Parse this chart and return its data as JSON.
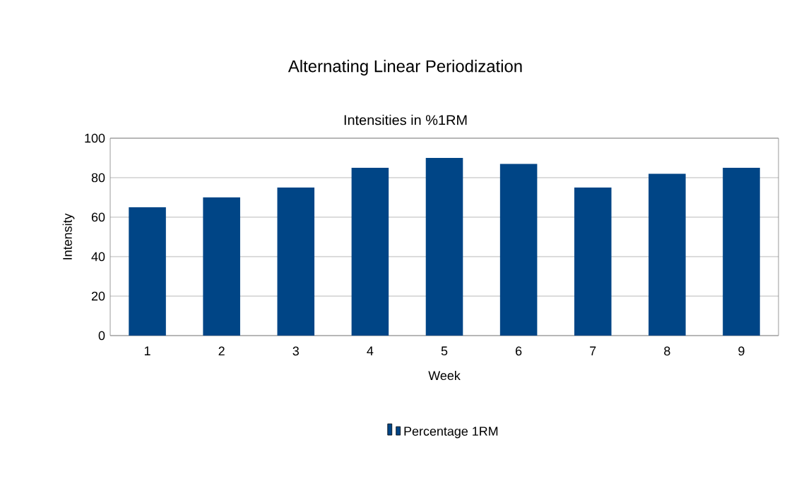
{
  "chart_data": {
    "type": "bar",
    "title": "Alternating Linear Periodization",
    "subtitle": "Intensities in %1RM",
    "xlabel": "Week",
    "ylabel": "Intensity",
    "categories": [
      "1",
      "2",
      "3",
      "4",
      "5",
      "6",
      "7",
      "8",
      "9"
    ],
    "series": [
      {
        "name": "Percentage 1RM",
        "color": "#004586",
        "values": [
          65,
          70,
          75,
          85,
          90,
          87,
          75,
          82,
          85
        ]
      }
    ],
    "ylim": [
      0,
      100
    ],
    "yticks": [
      0,
      20,
      40,
      60,
      80,
      100
    ],
    "grid": "y",
    "legend": "bottom"
  }
}
